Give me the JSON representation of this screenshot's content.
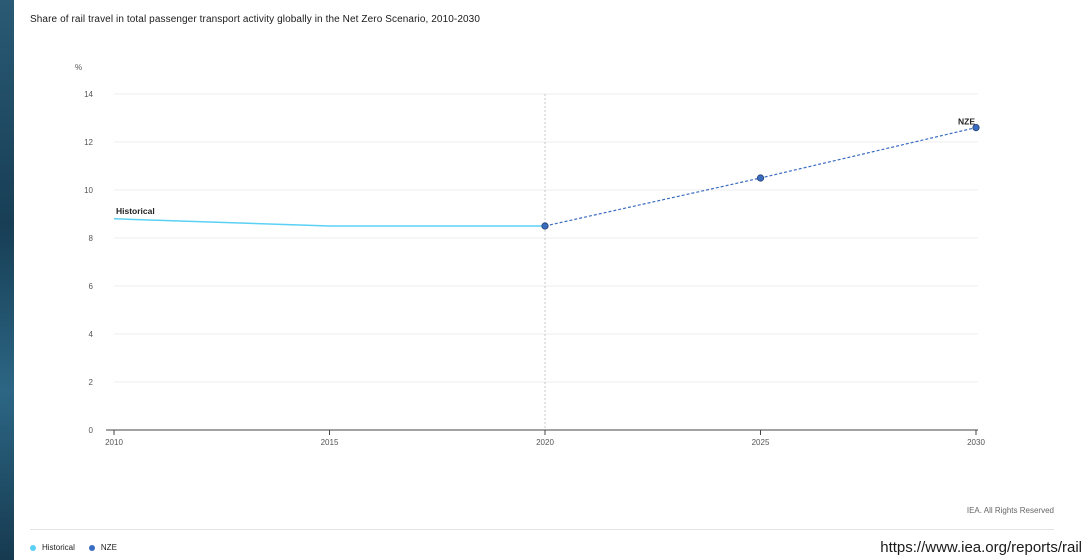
{
  "title": "Share of rail travel in total passenger transport activity globally in the Net Zero Scenario, 2010-2030",
  "rights": "IEA. All Rights Reserved",
  "source_url": "https://www.iea.org/reports/rail",
  "colors": {
    "historical": "#5bd0f5",
    "nze": "#3a6cc0"
  },
  "legend": [
    {
      "label": "Historical",
      "color": "#5bd0f5"
    },
    {
      "label": "NZE",
      "color": "#3a6cc0"
    }
  ],
  "chart_data": {
    "type": "line",
    "title": "Share of rail travel in total passenger transport activity globally in the Net Zero Scenario, 2010-2030",
    "ylabel": "%",
    "xlabel": "",
    "xlim": [
      2010,
      2030
    ],
    "ylim": [
      0,
      14
    ],
    "x_ticks": [
      2010,
      2015,
      2020,
      2025,
      2030
    ],
    "y_ticks": [
      0,
      2,
      4,
      6,
      8,
      10,
      12,
      14
    ],
    "grid": true,
    "reference_line_x": 2020,
    "legend_position": "bottom-left",
    "series": [
      {
        "name": "Historical",
        "style": "solid",
        "x": [
          2010,
          2015,
          2020
        ],
        "y": [
          8.8,
          8.5,
          8.5
        ]
      },
      {
        "name": "NZE",
        "style": "dashed-markers",
        "x": [
          2020,
          2025,
          2030
        ],
        "y": [
          8.5,
          10.5,
          12.6
        ]
      }
    ],
    "annotations": [
      {
        "text": "Historical",
        "x": 2010,
        "y": 8.8
      },
      {
        "text": "NZE",
        "x": 2030,
        "y": 12.6
      }
    ]
  }
}
